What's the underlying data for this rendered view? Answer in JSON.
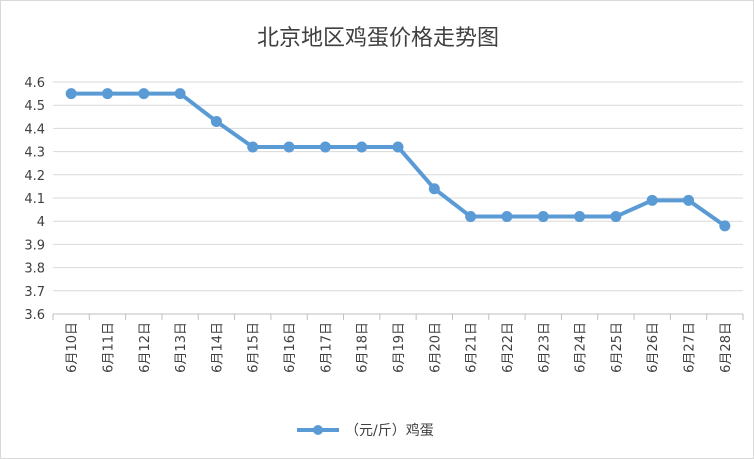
{
  "chart_data": {
    "type": "line",
    "title": "北京地区鸡蛋价格走势图",
    "xlabel": "",
    "ylabel": "",
    "ylim": [
      3.6,
      4.6
    ],
    "yticks": [
      "4.6",
      "4.5",
      "4.4",
      "4.3",
      "4.2",
      "4.1",
      "4",
      "3.9",
      "3.8",
      "3.7",
      "3.6"
    ],
    "grid": true,
    "legend_position": "bottom",
    "categories": [
      "6月10日",
      "6月11日",
      "6月12日",
      "6月13日",
      "6月14日",
      "6月15日",
      "6月16日",
      "6月17日",
      "6月18日",
      "6月19日",
      "6月20日",
      "6月21日",
      "6月22日",
      "6月23日",
      "6月24日",
      "6月25日",
      "6月26日",
      "6月27日",
      "6月28日"
    ],
    "series": [
      {
        "name": "（元/斤）鸡蛋",
        "color": "#5b9bd5",
        "values": [
          4.55,
          4.55,
          4.55,
          4.55,
          4.43,
          4.32,
          4.32,
          4.32,
          4.32,
          4.32,
          4.14,
          4.02,
          4.02,
          4.02,
          4.02,
          4.02,
          4.09,
          4.09,
          3.98
        ]
      }
    ]
  }
}
